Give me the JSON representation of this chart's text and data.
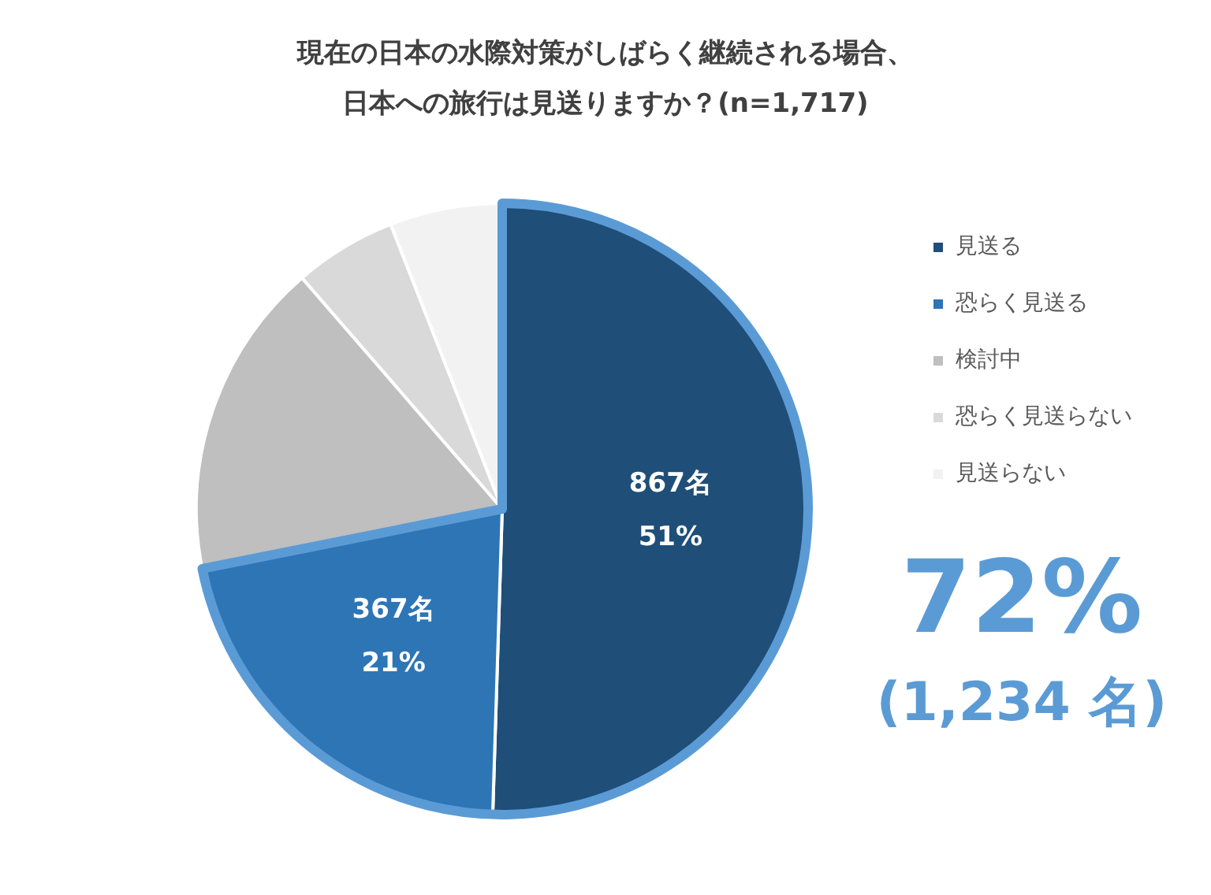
{
  "chart_data": {
    "type": "pie",
    "title": "現在の日本の水際対策がしばらく継続される場合、日本への旅行は見送りますか？(n=1,717)",
    "categories": [
      "見送る",
      "恐らく見送る",
      "検討中",
      "恐らく見送らない",
      "見送らない"
    ],
    "values": [
      867,
      367,
      288,
      93,
      102
    ],
    "colors": [
      "#1f4e79",
      "#2e75b6",
      "#bfbfbf",
      "#d9d9d9",
      "#f2f2f2"
    ],
    "value_labels": [
      "867名\n51%",
      "367名\n21%",
      null,
      null,
      null
    ],
    "legend": "right",
    "annotations": [
      "72%",
      "(1,234 名)"
    ]
  }
}
